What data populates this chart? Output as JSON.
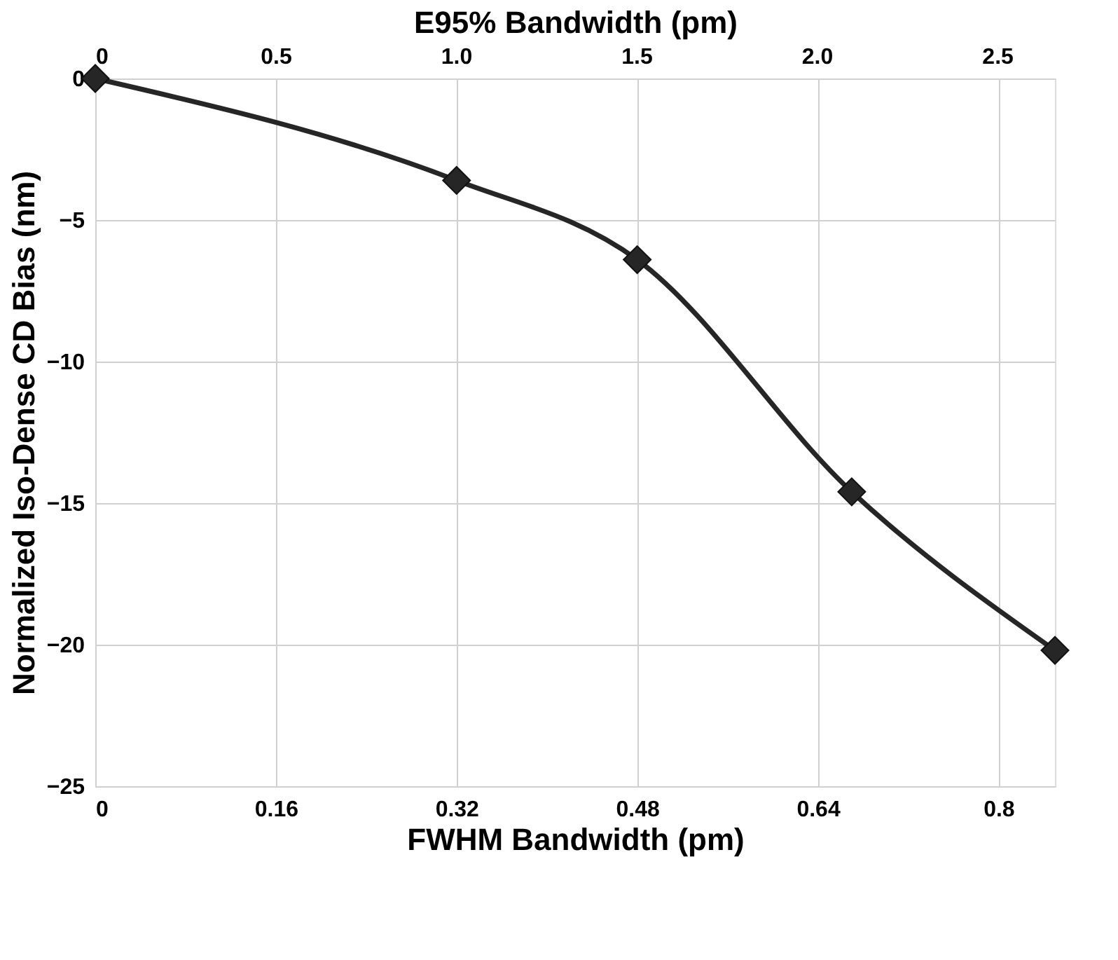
{
  "chart_data": {
    "type": "line",
    "xlabel": "FWHM Bandwidth (pm)",
    "ylabel": "Normalized Iso-Dense CD Bias (nm)",
    "x2label": "E95% Bandwidth (pm)",
    "x": [
      0,
      0.32,
      0.48,
      0.67,
      0.85
    ],
    "series": [
      {
        "color": "#262626",
        "values": [
          0,
          -3.6,
          -6.4,
          -14.6,
          -20.2
        ]
      }
    ],
    "xlim": [
      0,
      0.85
    ],
    "xticks": [
      0,
      0.16,
      0.32,
      0.48,
      0.64,
      0.8
    ],
    "x2lim": [
      0,
      2.66
    ],
    "x2ticks": [
      0,
      0.5,
      {
        "value": 1,
        "label": "1.0"
      },
      {
        "value": 1.5,
        "label": "1.5"
      },
      {
        "value": 2,
        "label": "2.0"
      },
      2.5
    ],
    "ylim": [
      -25,
      0
    ],
    "yticks": [
      0,
      -5,
      -10,
      -15,
      -20,
      -25
    ],
    "grid": true,
    "marker": "diamond",
    "line_style": "solid"
  }
}
